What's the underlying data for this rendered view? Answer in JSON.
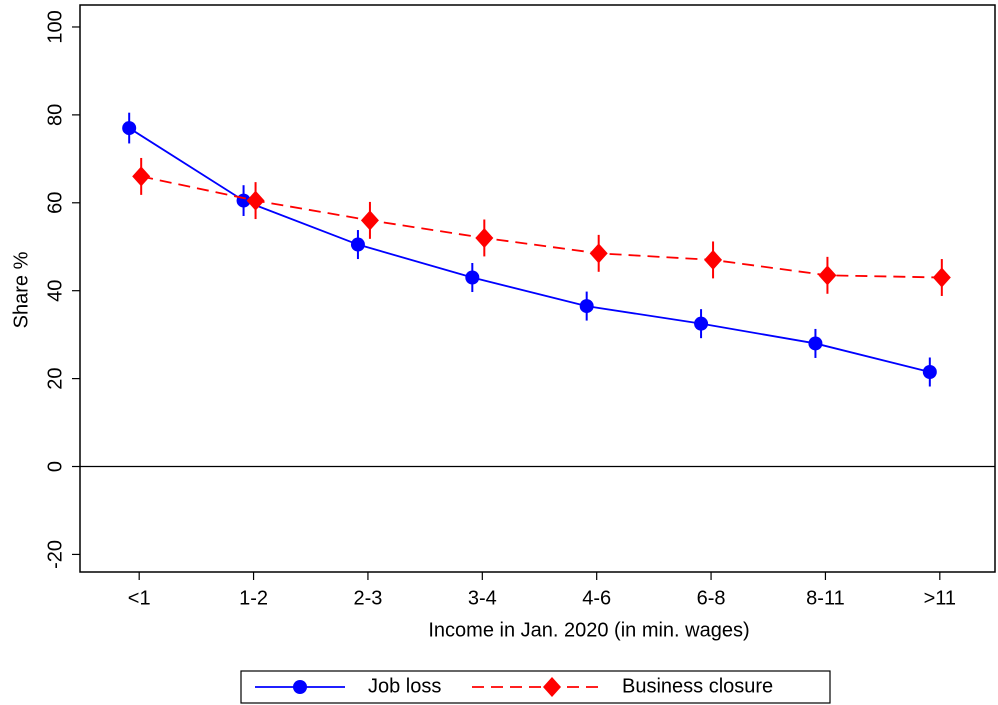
{
  "chart_data": {
    "type": "line",
    "x_label": "Income in Jan. 2020 (in min. wages)",
    "y_label": "Share %",
    "categories": [
      "<1",
      "1-2",
      "2-3",
      "3-4",
      "4-6",
      "6-8",
      "8-11",
      ">11"
    ],
    "series": [
      {
        "name": "Job loss",
        "color": "#0000ff",
        "marker": "circle",
        "dash": "solid",
        "values": [
          77,
          60.5,
          50.5,
          43,
          36.5,
          32.5,
          28,
          21.5
        ],
        "errors": [
          3.5,
          3.5,
          3.3,
          3.3,
          3.3,
          3.3,
          3.3,
          3.3
        ]
      },
      {
        "name": "Business closure",
        "color": "#ff0000",
        "marker": "diamond",
        "dash": "dashed",
        "values": [
          66,
          60.5,
          56,
          52,
          48.5,
          47,
          43.5,
          43
        ],
        "errors": [
          4.2,
          4.2,
          4.2,
          4.2,
          4.2,
          4.2,
          4.2,
          4.2
        ]
      }
    ],
    "ylim": [
      -24,
      105
    ],
    "yticks": [
      -20,
      0,
      20,
      40,
      60,
      80,
      100
    ],
    "zero_line": true,
    "legend": "bottom"
  }
}
